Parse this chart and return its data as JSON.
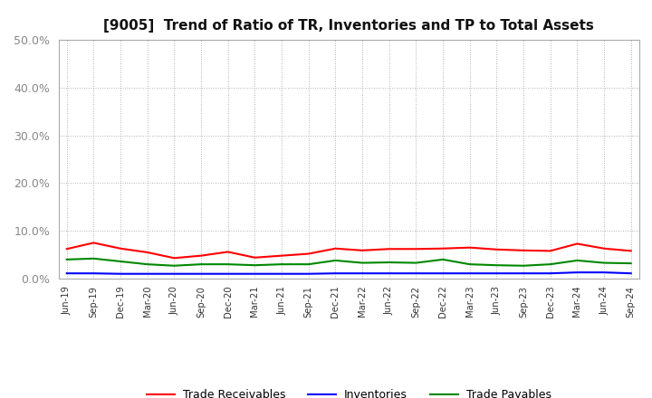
{
  "title": "[9005]  Trend of Ratio of TR, Inventories and TP to Total Assets",
  "labels": [
    "Jun-19",
    "Sep-19",
    "Dec-19",
    "Mar-20",
    "Jun-20",
    "Sep-20",
    "Dec-20",
    "Mar-21",
    "Jun-21",
    "Sep-21",
    "Dec-21",
    "Mar-22",
    "Jun-22",
    "Sep-22",
    "Dec-22",
    "Mar-23",
    "Jun-23",
    "Sep-23",
    "Dec-23",
    "Mar-24",
    "Jun-24",
    "Sep-24"
  ],
  "trade_receivables": [
    0.062,
    0.075,
    0.063,
    0.055,
    0.043,
    0.048,
    0.056,
    0.044,
    0.048,
    0.052,
    0.063,
    0.059,
    0.062,
    0.062,
    0.063,
    0.065,
    0.061,
    0.059,
    0.058,
    0.073,
    0.063,
    0.058
  ],
  "inventories": [
    0.011,
    0.011,
    0.01,
    0.01,
    0.01,
    0.01,
    0.01,
    0.01,
    0.01,
    0.01,
    0.011,
    0.011,
    0.011,
    0.011,
    0.011,
    0.011,
    0.011,
    0.011,
    0.011,
    0.013,
    0.013,
    0.011
  ],
  "trade_payables": [
    0.04,
    0.042,
    0.036,
    0.03,
    0.027,
    0.03,
    0.03,
    0.028,
    0.03,
    0.03,
    0.038,
    0.033,
    0.034,
    0.033,
    0.04,
    0.03,
    0.028,
    0.027,
    0.03,
    0.038,
    0.033,
    0.032
  ],
  "tr_color": "#ff0000",
  "inv_color": "#0000ff",
  "tp_color": "#008800",
  "background_color": "#ffffff",
  "grid_color": "#999999",
  "spine_color": "#aaaaaa",
  "ylim": [
    0.0,
    0.5
  ],
  "yticks": [
    0.0,
    0.1,
    0.2,
    0.3,
    0.4,
    0.5
  ],
  "ylabel_color": "#888888",
  "title_fontsize": 11,
  "legend_labels": [
    "Trade Receivables",
    "Inventories",
    "Trade Payables"
  ]
}
